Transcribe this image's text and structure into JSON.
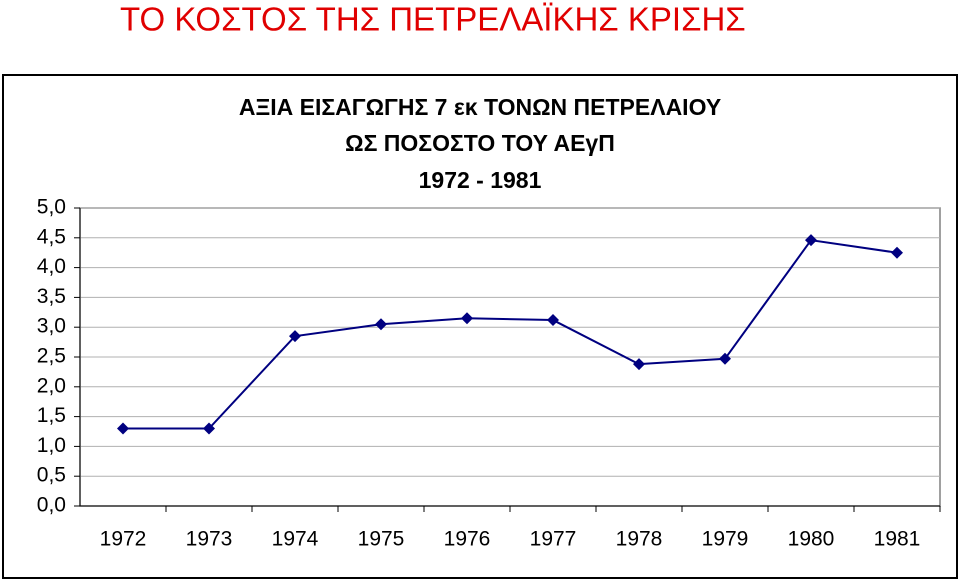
{
  "page_title": "ΤΟ ΚΟΣΤΟΣ ΤΗΣ ΠΕΤΡΕΛΑΪΚΗΣ ΚΡΙΣΗΣ",
  "chart_data": {
    "type": "line",
    "title": [
      "ΑΞΙΑ ΕΙΣΑΓΩΓΗΣ 7 εκ ΤΟΝΩΝ ΠΕΤΡΕΛΑΙΟΥ",
      "ΩΣ ΠΟΣΟΣΤΟ ΤΟΥ ΑΕγΠ"
    ],
    "subtitle": "1972 - 1981",
    "categories": [
      "1972",
      "1973",
      "1974",
      "1975",
      "1976",
      "1977",
      "1978",
      "1979",
      "1980",
      "1981"
    ],
    "values": [
      1.3,
      1.3,
      2.85,
      3.05,
      3.15,
      3.12,
      2.38,
      2.47,
      4.46,
      4.25
    ],
    "color": "#000080",
    "ylim": [
      0,
      5
    ],
    "yticks": [
      {
        "value": 0,
        "label": "0,0"
      },
      {
        "value": 0.5,
        "label": "0,5"
      },
      {
        "value": 1,
        "label": "1,0"
      },
      {
        "value": 1.5,
        "label": "1,5"
      },
      {
        "value": 2,
        "label": "2,0"
      },
      {
        "value": 2.5,
        "label": "2,5"
      },
      {
        "value": 3,
        "label": "3,0"
      },
      {
        "value": 3.5,
        "label": "3,5"
      },
      {
        "value": 4,
        "label": "4,0"
      },
      {
        "value": 4.5,
        "label": "4,5"
      },
      {
        "value": 5,
        "label": "5,0"
      }
    ],
    "grid": true
  }
}
